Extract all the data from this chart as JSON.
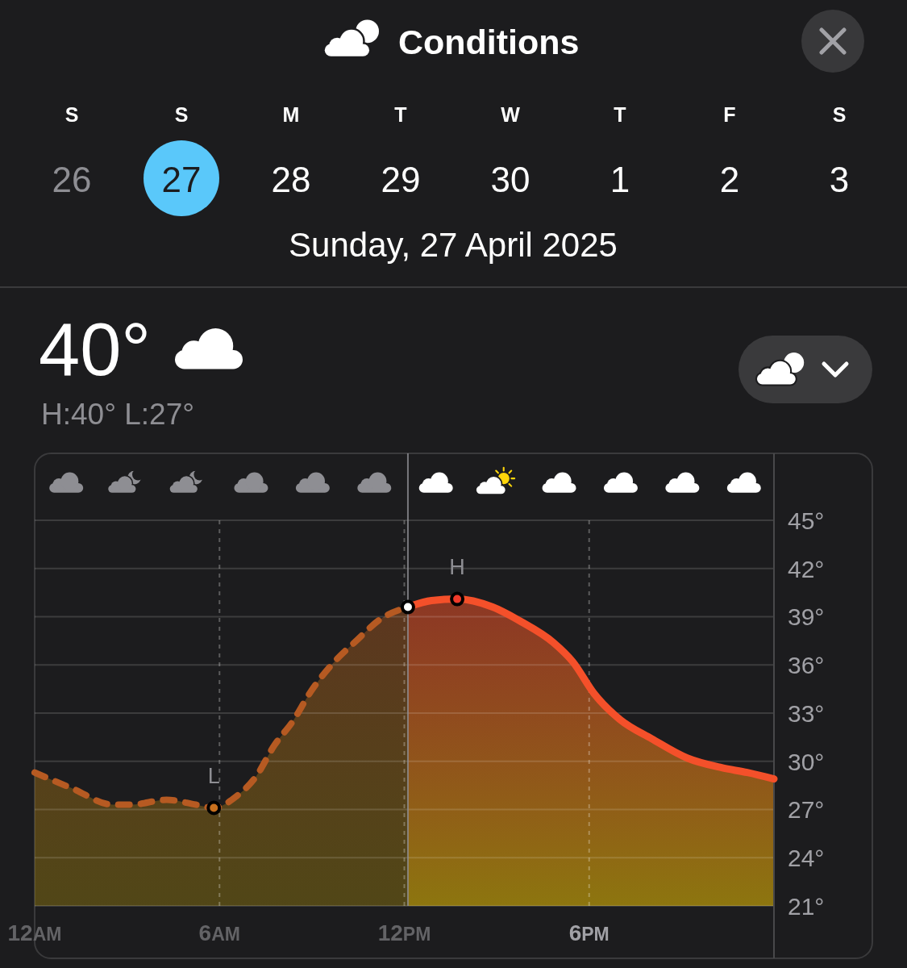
{
  "chart_data": {
    "type": "area",
    "title": "Conditions",
    "subtitle": "Sunday, 27 April 2025",
    "annotations": [
      "S",
      "S",
      "M",
      "T",
      "W",
      "T",
      "F",
      "S",
      "26",
      "27",
      "28",
      "29",
      "30",
      "1",
      "2",
      "3",
      "40°",
      "H:40° L:27°",
      {
        "text": "L",
        "x": "2025-04-27T05:49",
        "y": 27.1
      },
      {
        "text": "H",
        "x": "2025-04-27T13:43",
        "y": 40.1
      }
    ],
    "xlim": [
      "2025-04-27T00:00",
      "2025-04-28T00:00"
    ],
    "xticks": [
      {
        "value": "2025-04-27T00:00",
        "label": "12AM"
      },
      {
        "value": "2025-04-27T06:00",
        "label": "6AM"
      },
      {
        "value": "2025-04-27T12:00",
        "label": "12PM"
      },
      {
        "value": "2025-04-27T18:00",
        "label": "6PM"
      }
    ],
    "ylim": [
      21,
      45
    ],
    "yticks": [
      {
        "value": 21,
        "label": "21°"
      },
      {
        "value": 24,
        "label": "24°"
      },
      {
        "value": 27,
        "label": "27°"
      },
      {
        "value": 30,
        "label": "30°"
      },
      {
        "value": 33,
        "label": "33°"
      },
      {
        "value": 36,
        "label": "36°"
      },
      {
        "value": 39,
        "label": "39°"
      },
      {
        "value": 42,
        "label": "42°"
      },
      {
        "value": 45,
        "label": "45°"
      }
    ],
    "grid": true,
    "ref_lines": [
      {
        "axis": "x",
        "value": "2025-04-27T12:07",
        "color": "#8e8e93"
      }
    ],
    "series": [
      {
        "color": "#b65a22",
        "line_style": "dashed",
        "x": [
          "2025-04-27T00:00",
          "2025-04-27T01:14",
          "2025-04-27T02:32",
          "2025-04-27T03:08",
          "2025-04-27T04:17",
          "2025-04-27T05:14",
          "2025-04-27T05:49",
          "2025-04-27T06:32",
          "2025-04-27T07:10",
          "2025-04-27T07:47",
          "2025-04-27T08:23",
          "2025-04-27T08:57",
          "2025-04-27T09:41",
          "2025-04-27T10:23",
          "2025-04-27T11:16",
          "2025-04-27T12:07"
        ],
        "values": [
          29.3,
          28.3,
          27.3,
          27.3,
          27.6,
          27.3,
          27.1,
          27.8,
          29.0,
          31.0,
          32.5,
          34.3,
          36.1,
          37.4,
          38.9,
          39.6
        ]
      },
      {
        "color": "#f4502a",
        "line_style": "solid",
        "x": [
          "2025-04-27T12:07",
          "2025-04-27T12:53",
          "2025-04-27T13:43",
          "2025-04-27T14:52",
          "2025-04-27T15:47",
          "2025-04-27T16:50",
          "2025-04-27T17:28",
          "2025-04-27T18:10",
          "2025-04-27T19:00",
          "2025-04-27T20:02",
          "2025-04-27T21:11",
          "2025-04-27T22:18",
          "2025-04-27T23:08",
          "2025-04-28T00:00"
        ],
        "values": [
          39.6,
          40.0,
          40.1,
          39.6,
          38.7,
          37.4,
          36.2,
          34.2,
          32.6,
          31.4,
          30.2,
          29.6,
          29.3,
          28.9
        ]
      },
      {
        "type": "scatter",
        "marker": "circle",
        "colors": [
          "#c8701e",
          "#ffffff",
          "#f03a2a"
        ],
        "x": [
          "2025-04-27T05:49",
          "2025-04-27T12:07",
          "2025-04-27T13:43"
        ],
        "values": [
          27.1,
          39.6,
          40.1
        ]
      }
    ]
  }
}
